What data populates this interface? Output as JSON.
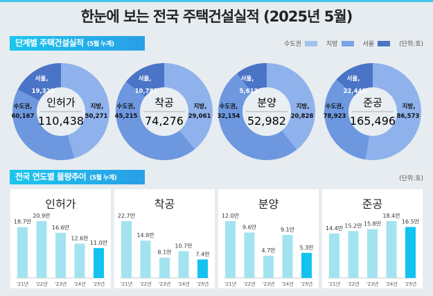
{
  "title": "한눈에 보는 전국 주택건설실적  (2025년 5월)",
  "section1": {
    "title": "단계별 주택건설실적",
    "note": "(5월 누계)"
  },
  "legend": {
    "items": [
      {
        "label": "수도권",
        "color": "#a4c2f0"
      },
      {
        "label": "지방",
        "color": "#7aa3e6"
      },
      {
        "label": "서울",
        "color": "#4a74c6"
      }
    ],
    "unit": "(단위:호)"
  },
  "donuts": [
    {
      "name": "인허가",
      "total": "110,438",
      "capital": 60167,
      "capital_label": "수도권,",
      "capital_value": "60,167",
      "local": 50271,
      "local_label": "지방,",
      "local_value": "50,271",
      "seoul": 19329,
      "seoul_label": "서울,",
      "seoul_value": "19,329"
    },
    {
      "name": "착공",
      "total": "74,276",
      "capital": 45215,
      "capital_label": "수도권,",
      "capital_value": "45,215",
      "local": 29061,
      "local_label": "지방,",
      "local_value": "29,061",
      "seoul": 10787,
      "seoul_label": "서울,",
      "seoul_value": "10,787"
    },
    {
      "name": "분양",
      "total": "52,982",
      "capital": 32154,
      "capital_label": "수도권,",
      "capital_value": "32,154",
      "local": 20828,
      "local_label": "지방,",
      "local_value": "20,828",
      "seoul": 5612,
      "seoul_label": "서울,",
      "seoul_value": "5,612"
    },
    {
      "name": "준공",
      "total": "165,496",
      "capital": 78923,
      "capital_label": "수도권,",
      "capital_value": "78,923",
      "local": 86573,
      "local_label": "지방,",
      "local_value": "86,573",
      "seoul": 22440,
      "seoul_label": "서울,",
      "seoul_value": "22,440"
    }
  ],
  "section2": {
    "title": "전국 연도별 물량추이",
    "note": "(5월 누계)",
    "unit": "(단위:호)"
  },
  "chart_data": [
    {
      "type": "bar",
      "title": "인허가",
      "categories": [
        "'21년",
        "'22년",
        "'23년",
        "'24년",
        "'25년"
      ],
      "values": [
        18.7,
        20.9,
        16.6,
        12.6,
        11.0
      ],
      "labels": [
        "18.7만",
        "20.9만",
        "16.6만",
        "12.6만",
        "11.0만"
      ],
      "colors": {
        "past": "#a3e3f0",
        "current": "#12c2f0"
      }
    },
    {
      "type": "bar",
      "title": "착공",
      "categories": [
        "'21년",
        "'22년",
        "'23년",
        "'24년",
        "'25년"
      ],
      "values": [
        22.7,
        14.9,
        8.1,
        10.7,
        7.4
      ],
      "labels": [
        "22.7만",
        "14.9만",
        "8.1만",
        "10.7만",
        "7.4만"
      ],
      "colors": {
        "past": "#a3e3f0",
        "current": "#12c2f0"
      }
    },
    {
      "type": "bar",
      "title": "분양",
      "categories": [
        "'21년",
        "'22년",
        "'23년",
        "'24년",
        "'25년"
      ],
      "values": [
        12.0,
        9.6,
        4.7,
        9.1,
        5.3
      ],
      "labels": [
        "12.0만",
        "9.6만",
        "4.7만",
        "9.1만",
        "5.3만"
      ],
      "colors": {
        "past": "#a3e3f0",
        "current": "#12c2f0"
      }
    },
    {
      "type": "bar",
      "title": "준공",
      "categories": [
        "'21년",
        "'22년",
        "'23년",
        "'24년",
        "'25년"
      ],
      "values": [
        14.4,
        15.2,
        15.8,
        18.4,
        16.5
      ],
      "labels": [
        "14.4만",
        "15.2만",
        "15.8만",
        "18.4만",
        "16.5만"
      ],
      "colors": {
        "past": "#a3e3f0",
        "current": "#12c2f0"
      }
    }
  ]
}
